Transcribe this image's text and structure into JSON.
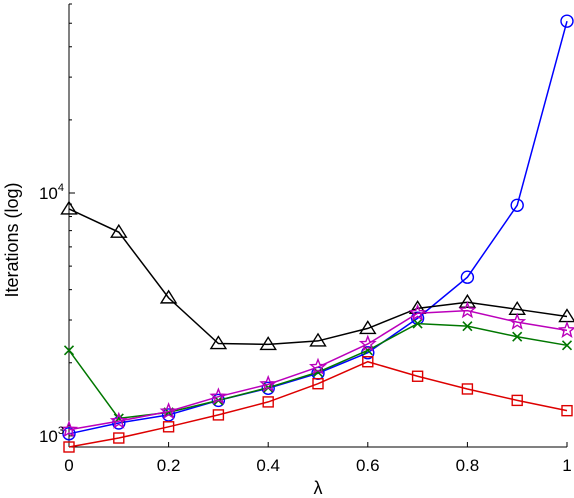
{
  "chart_data": {
    "type": "line",
    "xlabel": "λ",
    "ylabel": "Iterations (log)",
    "yscale": "log",
    "xlim": [
      0,
      1
    ],
    "ylim": [
      900,
      60000
    ],
    "grid": false,
    "x": [
      0,
      0.1,
      0.2,
      0.3,
      0.4,
      0.5,
      0.6,
      0.7,
      0.8,
      0.9,
      1.0
    ],
    "x_ticks": [
      0,
      0.2,
      0.4,
      0.6,
      0.8,
      1
    ],
    "x_tick_labels": [
      "0",
      "0.2",
      "0.4",
      "0.6",
      "0.8",
      "1"
    ],
    "y_ticks": [
      {
        "value": 1000,
        "base": "10",
        "exp": "3"
      },
      {
        "value": 10000,
        "base": "10",
        "exp": "4"
      }
    ],
    "series": [
      {
        "color": "#0000ff",
        "marker": "circle",
        "values": [
          1020,
          1130,
          1220,
          1400,
          1570,
          1810,
          2200,
          3050,
          4500,
          8900,
          51000
        ]
      },
      {
        "color": "#000000",
        "marker": "triangle",
        "values": [
          8600,
          6900,
          3700,
          2400,
          2380,
          2460,
          2770,
          3350,
          3550,
          3320,
          3100
        ]
      },
      {
        "color": "#007700",
        "marker": "x",
        "values": [
          2250,
          1180,
          1250,
          1400,
          1580,
          1830,
          2250,
          2900,
          2830,
          2560,
          2360
        ]
      },
      {
        "color": "#bb00bb",
        "marker": "star",
        "values": [
          1060,
          1150,
          1260,
          1450,
          1630,
          1920,
          2390,
          3200,
          3280,
          2940,
          2720
        ]
      },
      {
        "color": "#dd0000",
        "marker": "square",
        "values": [
          900,
          980,
          1090,
          1220,
          1380,
          1640,
          2020,
          1760,
          1560,
          1400,
          1270
        ]
      }
    ]
  }
}
